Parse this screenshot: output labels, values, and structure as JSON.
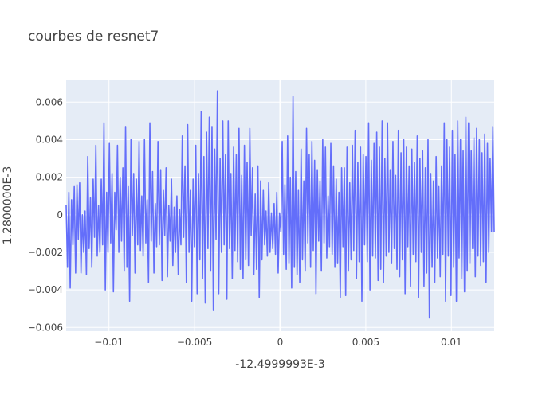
{
  "chart_data": {
    "type": "line",
    "title": "courbes de resnet7",
    "xlabel": "-12.4999993E-3",
    "ylabel": "1.2800000E-3",
    "xlim": [
      -0.0125,
      0.0125
    ],
    "ylim": [
      -0.0062,
      0.0072
    ],
    "grid": true,
    "legend": "none",
    "x_ticks": [
      {
        "value": -0.01,
        "label": "−0.01"
      },
      {
        "value": -0.005,
        "label": "−0.005"
      },
      {
        "value": 0,
        "label": "0"
      },
      {
        "value": 0.005,
        "label": "0.005"
      },
      {
        "value": 0.01,
        "label": "0.01"
      }
    ],
    "y_ticks": [
      {
        "value": -0.006,
        "label": "−0.006"
      },
      {
        "value": -0.004,
        "label": "−0.004"
      },
      {
        "value": -0.002,
        "label": "−0.002"
      },
      {
        "value": 0,
        "label": "0"
      },
      {
        "value": 0.002,
        "label": "0.002"
      },
      {
        "value": 0.004,
        "label": "0.004"
      },
      {
        "value": 0.006,
        "label": "0.006"
      }
    ],
    "series": [
      {
        "color": "#636efa",
        "x_start": -0.0125,
        "x_end": 0.0125,
        "y": [
          0.0005,
          -0.0028,
          0.0012,
          -0.0039,
          0.0008,
          -0.0016,
          0.0015,
          -0.0031,
          0.0016,
          -0.0013,
          0.0017,
          -0.0031,
          0.0,
          -0.002,
          0.0002,
          -0.0032,
          0.0031,
          -0.0018,
          0.0009,
          -0.0028,
          0.0019,
          -0.0012,
          0.0037,
          -0.0022,
          0.0005,
          -0.002,
          0.0019,
          -0.0016,
          0.0049,
          -0.004,
          0.0012,
          -0.002,
          0.0038,
          -0.0015,
          0.0022,
          -0.0041,
          0.0012,
          -0.0008,
          0.0037,
          -0.002,
          0.002,
          -0.0014,
          0.0025,
          -0.003,
          0.0047,
          -0.0028,
          0.0015,
          -0.0046,
          0.004,
          -0.0011,
          0.0022,
          -0.0031,
          0.0019,
          -0.0016,
          0.0039,
          -0.0019,
          0.001,
          -0.0022,
          0.004,
          -0.0015,
          0.0008,
          -0.0036,
          0.0049,
          -0.0014,
          0.0023,
          -0.0031,
          0.0006,
          -0.0017,
          0.0039,
          -0.0016,
          0.0024,
          -0.0035,
          0.0013,
          -0.0011,
          0.0025,
          -0.0033,
          0.0005,
          -0.0014,
          0.0019,
          -0.0027,
          0.0004,
          -0.002,
          0.001,
          -0.0032,
          0.0003,
          -0.0016,
          0.0042,
          -0.0012,
          0.0026,
          -0.0036,
          0.0048,
          -0.002,
          0.0013,
          -0.0046,
          0.0019,
          -0.0017,
          0.0037,
          -0.0042,
          0.0022,
          -0.0024,
          0.0055,
          -0.0034,
          0.0031,
          -0.0047,
          0.0044,
          -0.0018,
          0.0052,
          -0.003,
          0.0047,
          -0.0051,
          0.0035,
          -0.0013,
          0.0066,
          -0.0042,
          0.003,
          -0.002,
          0.005,
          -0.0016,
          0.0032,
          -0.0045,
          0.005,
          -0.0018,
          0.0022,
          -0.0034,
          0.0036,
          -0.0019,
          0.0032,
          -0.0025,
          0.0046,
          -0.0029,
          0.0021,
          -0.0034,
          0.0037,
          -0.0024,
          0.0028,
          -0.0027,
          0.0046,
          -0.0011,
          0.0025,
          -0.0032,
          0.0011,
          -0.0029,
          0.0026,
          -0.0044,
          0.0018,
          -0.0024,
          0.0013,
          -0.0016,
          0.0002,
          -0.0022,
          0.0017,
          -0.002,
          0.0001,
          -0.0018,
          0.0006,
          -0.0021,
          0.0012,
          -0.0031,
          0.0001,
          -0.0009,
          0.0039,
          -0.0021,
          0.0016,
          -0.0029,
          0.0042,
          -0.0026,
          0.002,
          -0.0039,
          0.0063,
          -0.0028,
          0.0023,
          -0.0032,
          0.0013,
          -0.0036,
          0.0035,
          -0.0024,
          0.0018,
          -0.003,
          0.0046,
          -0.0015,
          0.0032,
          -0.0028,
          0.0039,
          -0.0019,
          0.0029,
          -0.0042,
          0.0024,
          -0.0014,
          0.0018,
          -0.003,
          0.004,
          -0.0015,
          0.0036,
          -0.0023,
          0.001,
          -0.0017,
          0.0038,
          -0.0021,
          0.0026,
          -0.0028,
          0.0019,
          -0.0026,
          0.0012,
          -0.0044,
          0.0025,
          -0.0017,
          0.0025,
          -0.0043,
          0.0036,
          -0.003,
          0.0017,
          -0.0024,
          0.0037,
          -0.0019,
          0.0045,
          -0.0034,
          0.0028,
          -0.0025,
          0.0036,
          -0.0046,
          0.0032,
          -0.0016,
          0.0031,
          -0.0025,
          0.0049,
          -0.004,
          0.0029,
          -0.0022,
          0.0038,
          -0.0023,
          0.0044,
          -0.0035,
          0.0036,
          -0.0029,
          0.005,
          -0.0036,
          0.003,
          -0.0022,
          0.0049,
          -0.002,
          0.0024,
          -0.0026,
          0.0039,
          -0.0018,
          0.0021,
          -0.0029,
          0.0045,
          -0.0033,
          0.0033,
          -0.0024,
          0.004,
          -0.0042,
          0.0036,
          -0.0017,
          0.0026,
          -0.0038,
          0.0035,
          -0.0021,
          0.0028,
          -0.0025,
          0.0042,
          -0.0044,
          0.003,
          -0.002,
          0.0034,
          -0.0038,
          0.0025,
          -0.0031,
          0.004,
          -0.0055,
          0.0022,
          -0.0028,
          0.0018,
          -0.0036,
          0.0031,
          -0.0023,
          0.0015,
          -0.0033,
          0.0026,
          -0.0021,
          0.0049,
          -0.0046,
          0.004,
          -0.0022,
          0.0036,
          -0.0043,
          0.0045,
          -0.0028,
          0.0032,
          -0.0046,
          0.005,
          -0.0023,
          0.004,
          -0.0034,
          0.0034,
          -0.0041,
          0.0052,
          -0.003,
          0.0049,
          -0.0026,
          0.0034,
          -0.0018,
          0.0041,
          -0.0033,
          0.0046,
          -0.0022,
          0.004,
          -0.0027,
          0.0033,
          -0.0025,
          0.0043,
          -0.0036,
          0.0038,
          -0.002,
          0.003,
          -0.0009,
          0.0047,
          -0.0009
        ]
      }
    ]
  }
}
